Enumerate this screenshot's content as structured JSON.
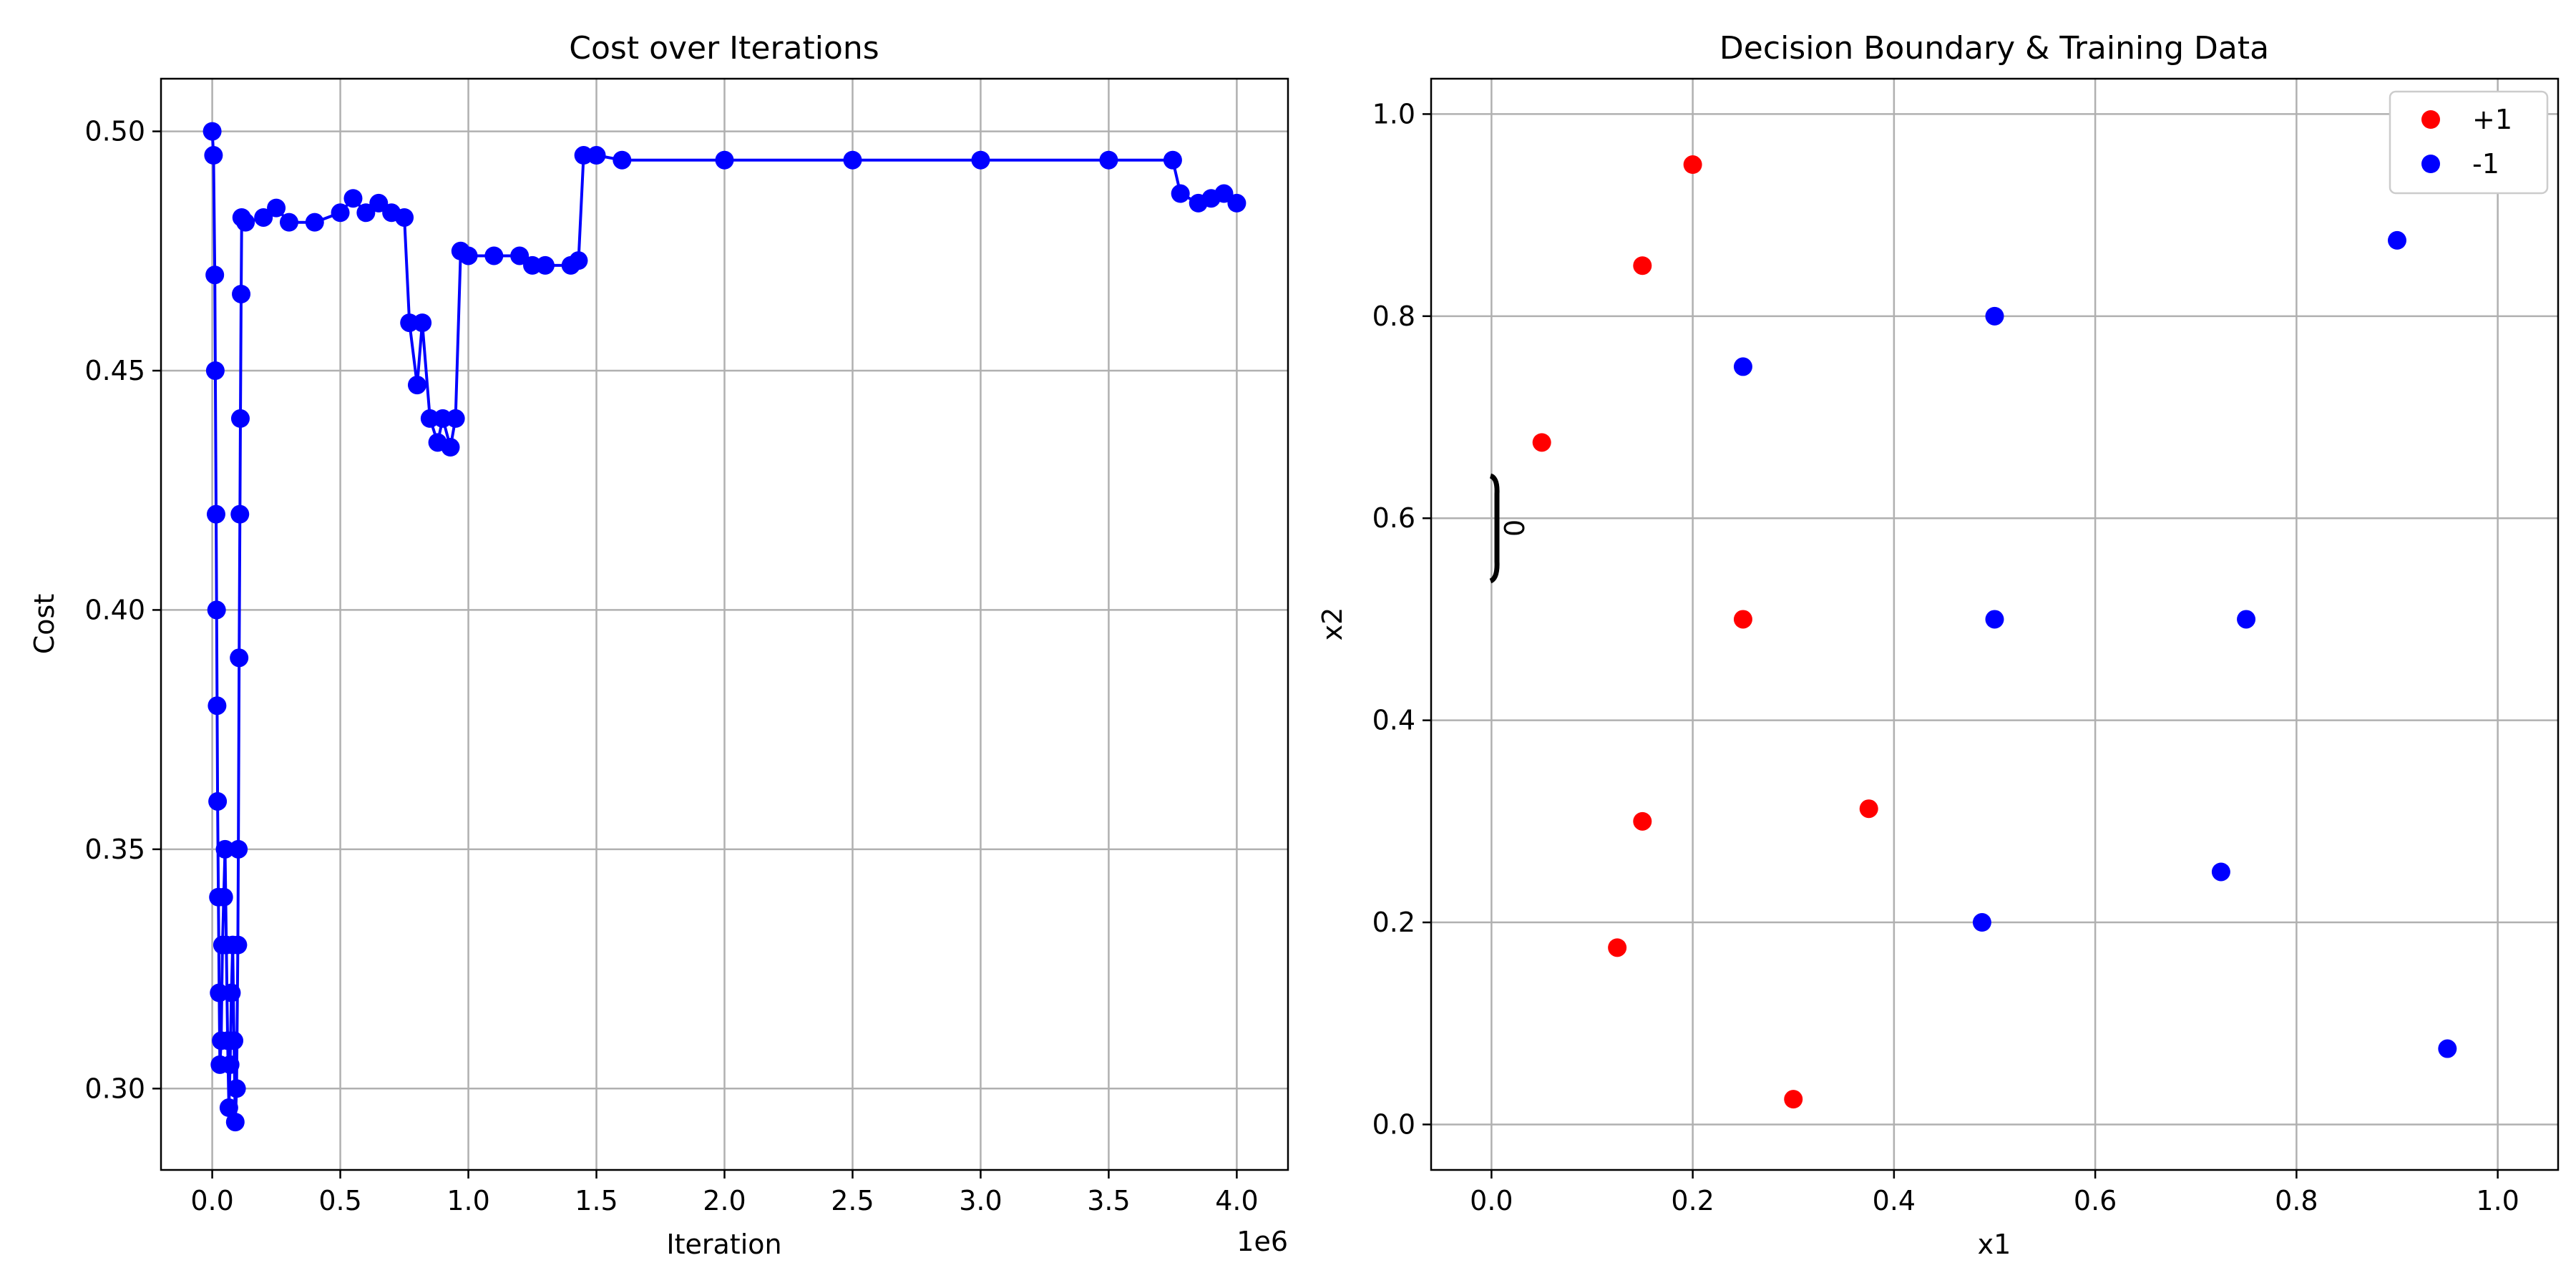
{
  "chart_data": [
    {
      "type": "line",
      "title": "Cost over Iterations",
      "xlabel": "Iteration",
      "ylabel": "Cost",
      "x_scale_label": "1e6",
      "xlim": [
        -0.2,
        4.2
      ],
      "ylim": [
        0.283,
        0.511
      ],
      "xticks": [
        0.0,
        0.5,
        1.0,
        1.5,
        2.0,
        2.5,
        3.0,
        3.5,
        4.0
      ],
      "xtick_labels": [
        "0.0",
        "0.5",
        "1.0",
        "1.5",
        "2.0",
        "2.5",
        "3.0",
        "3.5",
        "4.0"
      ],
      "yticks": [
        0.3,
        0.35,
        0.4,
        0.45,
        0.5
      ],
      "ytick_labels": [
        "0.30",
        "0.35",
        "0.40",
        "0.45",
        "0.50"
      ],
      "grid": true,
      "marker": "circle",
      "color": "#0000ff",
      "series": [
        {
          "x_unit_multiplier": 1000000,
          "points": [
            [
              0.0,
              0.5
            ],
            [
              0.005,
              0.495
            ],
            [
              0.01,
              0.47
            ],
            [
              0.012,
              0.45
            ],
            [
              0.015,
              0.42
            ],
            [
              0.017,
              0.4
            ],
            [
              0.019,
              0.38
            ],
            [
              0.021,
              0.36
            ],
            [
              0.024,
              0.34
            ],
            [
              0.027,
              0.32
            ],
            [
              0.03,
              0.305
            ],
            [
              0.035,
              0.31
            ],
            [
              0.04,
              0.33
            ],
            [
              0.045,
              0.34
            ],
            [
              0.05,
              0.35
            ],
            [
              0.055,
              0.33
            ],
            [
              0.06,
              0.31
            ],
            [
              0.065,
              0.296
            ],
            [
              0.07,
              0.305
            ],
            [
              0.075,
              0.32
            ],
            [
              0.08,
              0.33
            ],
            [
              0.085,
              0.31
            ],
            [
              0.09,
              0.293
            ],
            [
              0.095,
              0.3
            ],
            [
              0.1,
              0.33
            ],
            [
              0.102,
              0.35
            ],
            [
              0.105,
              0.39
            ],
            [
              0.108,
              0.42
            ],
            [
              0.11,
              0.44
            ],
            [
              0.113,
              0.466
            ],
            [
              0.115,
              0.482
            ],
            [
              0.13,
              0.481
            ],
            [
              0.2,
              0.482
            ],
            [
              0.25,
              0.484
            ],
            [
              0.3,
              0.481
            ],
            [
              0.4,
              0.481
            ],
            [
              0.5,
              0.483
            ],
            [
              0.55,
              0.486
            ],
            [
              0.6,
              0.483
            ],
            [
              0.65,
              0.485
            ],
            [
              0.7,
              0.483
            ],
            [
              0.75,
              0.482
            ],
            [
              0.77,
              0.46
            ],
            [
              0.8,
              0.447
            ],
            [
              0.82,
              0.46
            ],
            [
              0.85,
              0.44
            ],
            [
              0.88,
              0.435
            ],
            [
              0.9,
              0.44
            ],
            [
              0.93,
              0.434
            ],
            [
              0.95,
              0.44
            ],
            [
              0.97,
              0.475
            ],
            [
              1.0,
              0.474
            ],
            [
              1.1,
              0.474
            ],
            [
              1.2,
              0.474
            ],
            [
              1.25,
              0.472
            ],
            [
              1.3,
              0.472
            ],
            [
              1.4,
              0.472
            ],
            [
              1.43,
              0.473
            ],
            [
              1.45,
              0.495
            ],
            [
              1.5,
              0.495
            ],
            [
              1.6,
              0.494
            ],
            [
              2.0,
              0.494
            ],
            [
              2.5,
              0.494
            ],
            [
              3.0,
              0.494
            ],
            [
              3.5,
              0.494
            ],
            [
              3.75,
              0.494
            ],
            [
              3.78,
              0.487
            ],
            [
              3.85,
              0.485
            ],
            [
              3.9,
              0.486
            ],
            [
              3.95,
              0.487
            ],
            [
              4.0,
              0.485
            ]
          ]
        }
      ]
    },
    {
      "type": "scatter",
      "title": "Decision Boundary & Training Data",
      "xlabel": "x1",
      "ylabel": "x2",
      "xlim": [
        -0.06,
        1.06
      ],
      "ylim": [
        -0.045,
        1.035
      ],
      "xticks": [
        0.0,
        0.2,
        0.4,
        0.6,
        0.8,
        1.0
      ],
      "xtick_labels": [
        "0.0",
        "0.2",
        "0.4",
        "0.6",
        "0.8",
        "1.0"
      ],
      "yticks": [
        0.0,
        0.2,
        0.4,
        0.6,
        0.8,
        1.0
      ],
      "ytick_labels": [
        "0.0",
        "0.2",
        "0.4",
        "0.6",
        "0.8",
        "1.0"
      ],
      "grid": true,
      "legend": "top-right",
      "contour_label": "0",
      "series": [
        {
          "name": "+1",
          "color": "#ff0000",
          "points": [
            [
              0.2,
              0.95
            ],
            [
              0.15,
              0.85
            ],
            [
              0.05,
              0.675
            ],
            [
              0.25,
              0.5
            ],
            [
              0.15,
              0.3
            ],
            [
              0.375,
              0.3125
            ],
            [
              0.125,
              0.175
            ],
            [
              0.3,
              0.025
            ]
          ]
        },
        {
          "name": "-1",
          "color": "#0000ff",
          "points": [
            [
              0.9,
              0.875
            ],
            [
              0.5,
              0.8
            ],
            [
              0.25,
              0.75
            ],
            [
              0.5,
              0.5
            ],
            [
              0.75,
              0.5
            ],
            [
              0.725,
              0.25
            ],
            [
              0.4875,
              0.2
            ],
            [
              0.95,
              0.075
            ]
          ]
        }
      ]
    }
  ]
}
